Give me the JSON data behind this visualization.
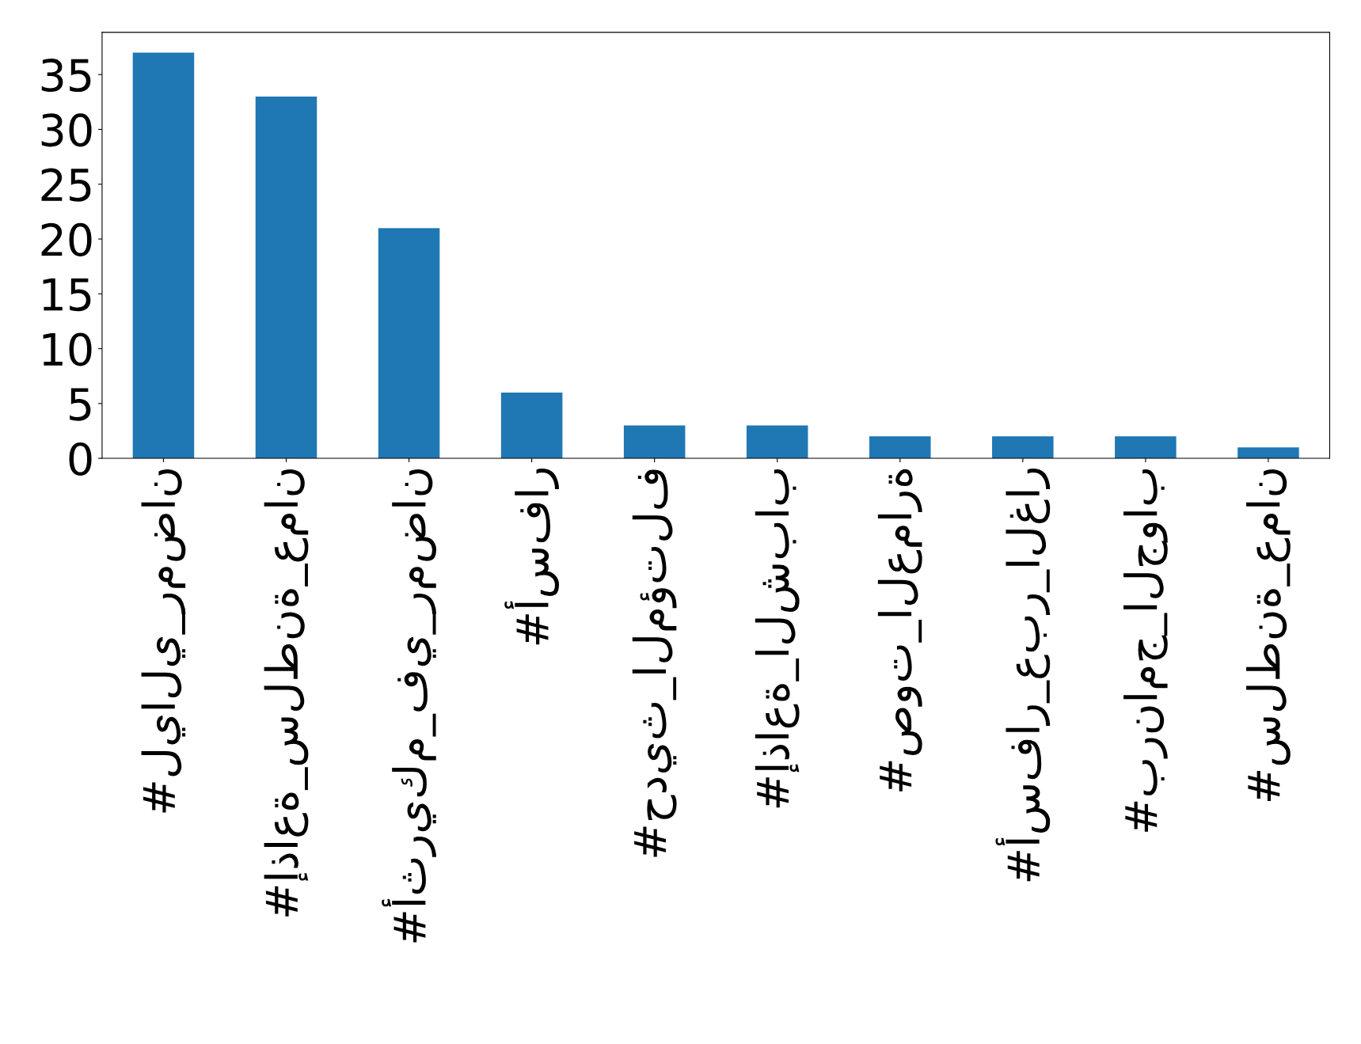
{
  "chart_data": {
    "type": "bar",
    "categories": [
      "#ليالي_رمضان",
      "#إذاعة_سلطنة_عمان",
      "#أثريكم_في_رمضان",
      "#أسفار",
      "#حديث_المؤتلف",
      "#إذاعة_الشباب",
      "#صوت_العمارة",
      "#أسفار_عبر_الغار",
      "#برنامج_الجواب",
      "#سلطنة_عمان"
    ],
    "values": [
      37,
      33,
      21,
      6,
      3,
      3,
      2,
      2,
      2,
      1
    ],
    "color": "#1f77b4",
    "ylim": [
      0,
      38.85
    ],
    "yticks": [
      0,
      5,
      10,
      15,
      20,
      25,
      30,
      35
    ],
    "grid": false,
    "legend": false
  }
}
